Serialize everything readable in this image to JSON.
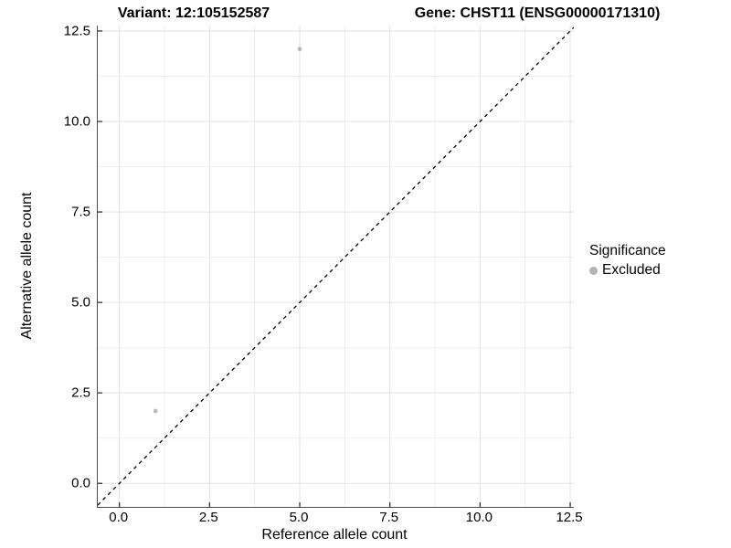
{
  "chart_data": {
    "type": "scatter",
    "titles": {
      "left": "Variant: 12:105152587",
      "right": "Gene: CHST11 (ENSG00000171310)"
    },
    "xlabel": "Reference allele count",
    "ylabel": "Alternative allele count",
    "xlim": [
      -0.6,
      12.6
    ],
    "ylim": [
      -0.65,
      12.65
    ],
    "x_ticks": {
      "values": [
        0,
        2.5,
        5,
        7.5,
        10,
        12.5
      ],
      "labels": [
        "0.0",
        "2.5",
        "5.0",
        "7.5",
        "10.0",
        "12.5"
      ]
    },
    "y_ticks": {
      "values": [
        0,
        2.5,
        5,
        7.5,
        10,
        12.5
      ],
      "labels": [
        "0.0",
        "2.5",
        "5.0",
        "7.5",
        "10.0",
        "12.5"
      ]
    },
    "minor_grid_step": 1.25,
    "grid": true,
    "legend_position": "right",
    "legend": {
      "title": "Significance",
      "items": [
        {
          "label": "Excluded",
          "color": "#b3b3b3"
        }
      ]
    },
    "series": [
      {
        "name": "Excluded",
        "color": "#b9b9b9",
        "marker": "circle",
        "size": 2.4,
        "points": [
          {
            "x": 1,
            "y": 2
          },
          {
            "x": 5,
            "y": 12
          }
        ]
      }
    ],
    "reference_line": {
      "kind": "identity",
      "equation": "y = x",
      "style": "dashed",
      "color": "#000000"
    }
  },
  "colors": {
    "background": "#ffffff",
    "grid_major": "#e2e2e2",
    "grid_minor": "#efefef",
    "axis_line": "#4d4d4d",
    "tick_mark": "#333333",
    "text": "#000000"
  }
}
